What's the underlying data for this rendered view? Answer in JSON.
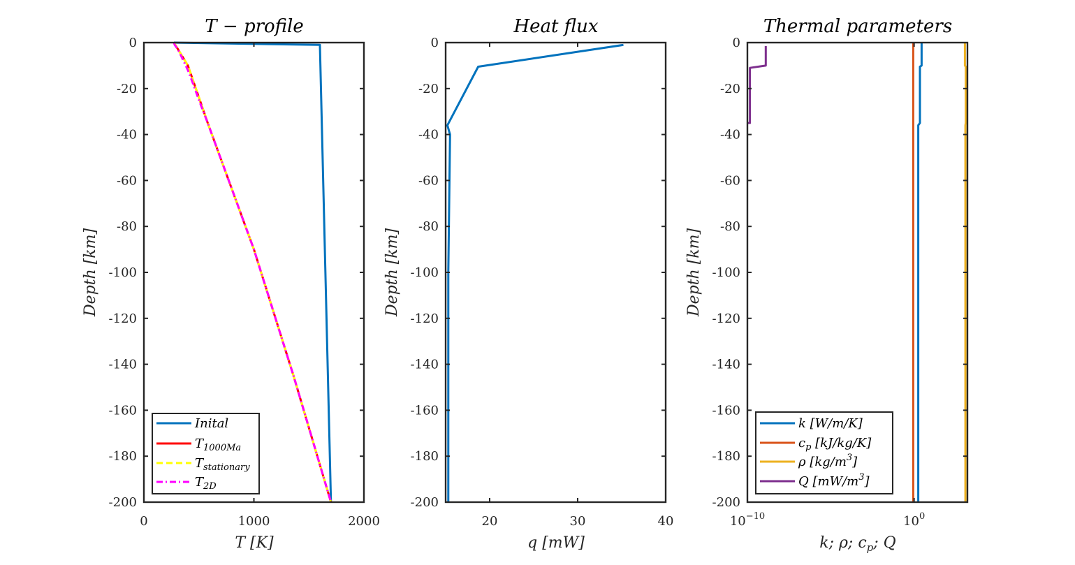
{
  "chart_data": [
    {
      "type": "line",
      "title": "T − profile",
      "xlabel": "T [K]",
      "ylabel": "Depth [km]",
      "xlim": [
        0,
        2000
      ],
      "ylim": [
        -200,
        0
      ],
      "xticks": [
        0,
        1000,
        2000
      ],
      "xtick_labels": [
        "0",
        "1000",
        "2000"
      ],
      "yticks": [
        0,
        -20,
        -40,
        -60,
        -80,
        -100,
        -120,
        -140,
        -160,
        -180,
        -200
      ],
      "ytick_labels": [
        "0",
        "-20",
        "-40",
        "-60",
        "-80",
        "-100",
        "-120",
        "-140",
        "-160",
        "-180",
        "-200"
      ],
      "legend_position": "bottom-left",
      "series": [
        {
          "name": "Inital",
          "color": "#0072BD",
          "dash": "solid",
          "x": [
            273,
            1600,
            1600,
            1700
          ],
          "y": [
            0,
            -1,
            -1.2,
            -200
          ]
        },
        {
          "name": "T_1000Ma",
          "color": "#FF0000",
          "dash": "solid",
          "x": [
            273,
            400,
            580,
            1000,
            1360,
            1700
          ],
          "y": [
            0,
            -10,
            -35,
            -90,
            -145,
            -200
          ]
        },
        {
          "name": "T_stationary",
          "color": "#FFFF00",
          "dash": "dashed",
          "x": [
            273,
            400,
            580,
            1000,
            1360,
            1700
          ],
          "y": [
            0,
            -10,
            -35,
            -90,
            -145,
            -200
          ]
        },
        {
          "name": "T_2D",
          "color": "#FF00FF",
          "dash": "dashdot",
          "x": [
            273,
            280,
            310,
            340,
            370,
            400,
            440,
            500,
            580,
            1000,
            1360,
            1700
          ],
          "y": [
            0,
            -1,
            -3,
            -6,
            -9,
            -12,
            -17,
            -25,
            -35,
            -90,
            -145,
            -200
          ]
        }
      ]
    },
    {
      "type": "line",
      "title": "Heat flux",
      "xlabel": "q [mW]",
      "ylabel": "Depth [km]",
      "xlim": [
        15,
        40
      ],
      "ylim": [
        -200,
        0
      ],
      "xticks": [
        20,
        30,
        40
      ],
      "xtick_labels": [
        "20",
        "30",
        "40"
      ],
      "yticks": [
        0,
        -20,
        -40,
        -60,
        -80,
        -100,
        -120,
        -140,
        -160,
        -180,
        -200
      ],
      "ytick_labels": [
        "0",
        "-20",
        "-40",
        "-60",
        "-80",
        "-100",
        "-120",
        "-140",
        "-160",
        "-180",
        "-200"
      ],
      "series": [
        {
          "color": "#0072BD",
          "dash": "solid",
          "x": [
            35.2,
            18.7,
            15.2,
            15.5,
            15.3,
            15.3
          ],
          "y": [
            -1,
            -10.5,
            -36,
            -40,
            -100,
            -200
          ]
        }
      ]
    },
    {
      "type": "line",
      "title": "Thermal parameters",
      "xlabel": "k; ρ; c_p; Q",
      "ylabel": "Depth [km]",
      "xscale": "log",
      "xlim": [
        -10,
        3.2
      ],
      "ylim": [
        -200,
        0
      ],
      "xticks": [
        -10,
        0
      ],
      "xtick_labels": [
        "10^-10",
        "10^0"
      ],
      "yticks": [
        0,
        -20,
        -40,
        -60,
        -80,
        -100,
        -120,
        -140,
        -160,
        -180,
        -200
      ],
      "ytick_labels": [
        "0",
        "-20",
        "-40",
        "-60",
        "-80",
        "-100",
        "-120",
        "-140",
        "-160",
        "-180",
        "-200"
      ],
      "legend_position": "bottom-left",
      "series": [
        {
          "name": "k [W/m/K]",
          "color": "#0072BD",
          "dash": "solid",
          "x": [
            0.45,
            0.45,
            0.35,
            0.35,
            0.25,
            0.25
          ],
          "y": [
            0,
            -10,
            -10.5,
            -35,
            -36,
            -200
          ]
        },
        {
          "name": "c_p [kJ/kg/K]",
          "color": "#D95319",
          "dash": "solid",
          "x": [
            -0.05,
            -0.05
          ],
          "y": [
            0,
            -200
          ]
        },
        {
          "name": "ρ [kg/m^3]",
          "color": "#EDB120",
          "dash": "solid",
          "x": [
            3.05,
            3.05,
            3.1,
            3.1,
            3.08,
            3.08
          ],
          "y": [
            0,
            -10,
            -10.5,
            -35,
            -36,
            -200
          ]
        },
        {
          "name": "Q [mW/m^3]",
          "color": "#7E2F8E",
          "dash": "solid",
          "x": [
            -8.9,
            -8.9,
            -9.85,
            -9.85,
            -10.0
          ],
          "y": [
            -1.5,
            -10,
            -11,
            -35,
            -35
          ]
        }
      ]
    }
  ]
}
